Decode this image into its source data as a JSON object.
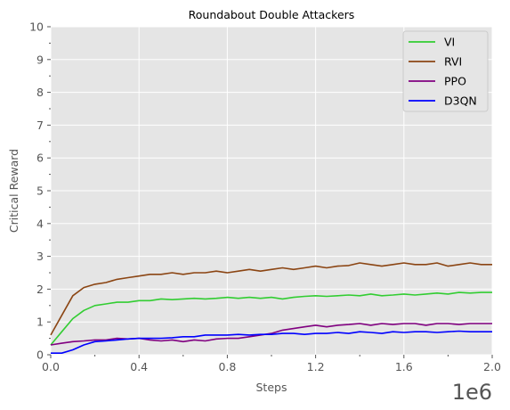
{
  "chart_data": {
    "type": "line",
    "title": "Roundabout Double Attackers",
    "xlabel": "Steps",
    "ylabel": "Critical Reward",
    "x_offset_label": "1e6",
    "xlim": [
      0,
      2.0
    ],
    "ylim": [
      0,
      10
    ],
    "x_ticks": [
      0,
      0.4,
      0.8,
      1.2,
      1.6,
      2.0
    ],
    "x_tick_labels": [
      "0.0",
      "0.4",
      "0.8",
      "1.2",
      "1.6",
      "2.0"
    ],
    "y_ticks": [
      0,
      1,
      2,
      3,
      4,
      5,
      6,
      7,
      8,
      9,
      10
    ],
    "y_tick_labels": [
      "0",
      "1",
      "2",
      "3",
      "4",
      "5",
      "6",
      "7",
      "8",
      "9",
      "10"
    ],
    "grid": true,
    "legend_position": "top-right",
    "x": [
      0,
      0.05,
      0.1,
      0.15,
      0.2,
      0.25,
      0.3,
      0.35,
      0.4,
      0.45,
      0.5,
      0.55,
      0.6,
      0.65,
      0.7,
      0.75,
      0.8,
      0.85,
      0.9,
      0.95,
      1.0,
      1.05,
      1.1,
      1.15,
      1.2,
      1.25,
      1.3,
      1.35,
      1.4,
      1.45,
      1.5,
      1.55,
      1.6,
      1.65,
      1.7,
      1.75,
      1.8,
      1.85,
      1.9,
      1.95,
      2.0
    ],
    "series": [
      {
        "name": "VI",
        "color": "#32cd32",
        "values": [
          0.3,
          0.7,
          1.1,
          1.35,
          1.5,
          1.55,
          1.6,
          1.6,
          1.65,
          1.65,
          1.7,
          1.68,
          1.7,
          1.72,
          1.7,
          1.72,
          1.75,
          1.72,
          1.75,
          1.72,
          1.75,
          1.7,
          1.75,
          1.78,
          1.8,
          1.78,
          1.8,
          1.82,
          1.8,
          1.85,
          1.8,
          1.82,
          1.85,
          1.82,
          1.85,
          1.88,
          1.85,
          1.9,
          1.88,
          1.9,
          1.9
        ]
      },
      {
        "name": "RVI",
        "color": "#8b4513",
        "values": [
          0.6,
          1.2,
          1.8,
          2.05,
          2.15,
          2.2,
          2.3,
          2.35,
          2.4,
          2.45,
          2.45,
          2.5,
          2.45,
          2.5,
          2.5,
          2.55,
          2.5,
          2.55,
          2.6,
          2.55,
          2.6,
          2.65,
          2.6,
          2.65,
          2.7,
          2.65,
          2.7,
          2.72,
          2.8,
          2.75,
          2.7,
          2.75,
          2.8,
          2.75,
          2.75,
          2.8,
          2.7,
          2.75,
          2.8,
          2.75,
          2.75
        ]
      },
      {
        "name": "PPO",
        "color": "#800080",
        "values": [
          0.3,
          0.35,
          0.4,
          0.42,
          0.45,
          0.45,
          0.5,
          0.48,
          0.5,
          0.45,
          0.42,
          0.45,
          0.4,
          0.45,
          0.42,
          0.48,
          0.5,
          0.5,
          0.55,
          0.6,
          0.65,
          0.75,
          0.8,
          0.85,
          0.9,
          0.85,
          0.9,
          0.92,
          0.95,
          0.9,
          0.95,
          0.92,
          0.95,
          0.95,
          0.9,
          0.95,
          0.95,
          0.92,
          0.95,
          0.95,
          0.95
        ]
      },
      {
        "name": "D3QN",
        "color": "#0000ff",
        "values": [
          0.05,
          0.05,
          0.15,
          0.3,
          0.4,
          0.42,
          0.45,
          0.48,
          0.5,
          0.5,
          0.5,
          0.52,
          0.55,
          0.55,
          0.6,
          0.6,
          0.6,
          0.62,
          0.6,
          0.62,
          0.62,
          0.65,
          0.65,
          0.62,
          0.65,
          0.65,
          0.68,
          0.65,
          0.7,
          0.68,
          0.65,
          0.7,
          0.68,
          0.7,
          0.7,
          0.68,
          0.7,
          0.72,
          0.7,
          0.7,
          0.7
        ]
      }
    ]
  }
}
